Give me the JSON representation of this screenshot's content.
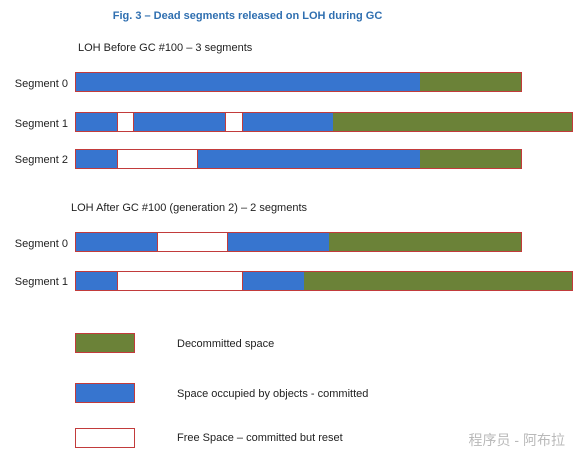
{
  "title": "Fig. 3 – Dead segments released on LOH during GC",
  "before": {
    "caption": "LOH Before GC #100 – 3 segments",
    "segments": [
      {
        "label": "Segment 0",
        "blocks": [
          "used",
          "decom"
        ]
      },
      {
        "label": "Segment 1",
        "blocks": [
          "used",
          "free",
          "used",
          "free",
          "used",
          "decom"
        ]
      },
      {
        "label": "Segment 2",
        "blocks": [
          "used",
          "free",
          "used",
          "decom"
        ]
      }
    ]
  },
  "after": {
    "caption": "LOH After GC #100 (generation 2) – 2 segments",
    "segments": [
      {
        "label": "Segment 0",
        "blocks": [
          "used",
          "free",
          "used",
          "decom"
        ]
      },
      {
        "label": "Segment 1",
        "blocks": [
          "used",
          "free",
          "used",
          "decom"
        ]
      }
    ]
  },
  "legend": {
    "decommitted": "Decommitted space",
    "occupied": "Space occupied by objects - committed",
    "free": "Free Space – committed but reset"
  },
  "colors": {
    "occupied": "#3775cf",
    "decommitted": "#6b8238",
    "free": "#ffffff",
    "border": "#c23b3b",
    "title": "#2f6fb0"
  },
  "watermark": "程序员 - 阿布拉"
}
